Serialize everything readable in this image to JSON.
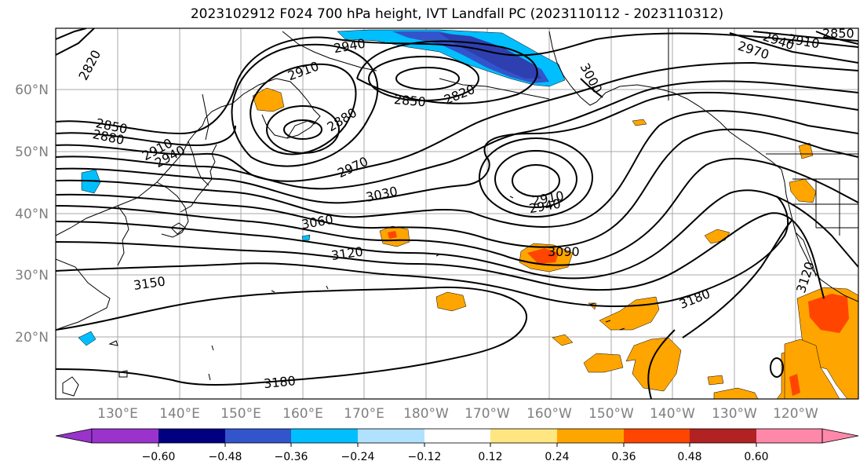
{
  "title": "2023102912 F024 700 hPa height, IVT Landfall PC (2023110112 - 2023110312)",
  "map": {
    "lat_labels": [
      "60°N",
      "50°N",
      "40°N",
      "30°N",
      "20°N"
    ],
    "lon_labels": [
      "130°E",
      "140°E",
      "150°E",
      "160°E",
      "170°E",
      "180°W",
      "170°W",
      "160°W",
      "150°W",
      "140°W",
      "130°W",
      "120°W"
    ],
    "contour_labels": [
      "2820",
      "2940",
      "2910",
      "2850",
      "2820",
      "2880",
      "2850",
      "2880",
      "2910",
      "2940",
      "2970",
      "3030",
      "3060",
      "2910",
      "2940",
      "3120",
      "3090",
      "3150",
      "3180",
      "3180",
      "2970",
      "2940",
      "2910",
      "2850",
      "3000",
      "3120"
    ],
    "colors": {
      "land_line": "#000000",
      "contour": "#000000",
      "grid": "#a0a0a0"
    }
  },
  "colorbar": {
    "ticks": [
      "−0.60",
      "−0.48",
      "−0.36",
      "−0.24",
      "−0.12",
      "0.12",
      "0.24",
      "0.36",
      "0.48",
      "0.60"
    ],
    "colors": [
      "#9933cc",
      "#000080",
      "#3355cc",
      "#00bfff",
      "#b0e2ff",
      "#ffffff",
      "#ffe680",
      "#ffa500",
      "#ff4500",
      "#b22222",
      "#ff88aa"
    ]
  }
}
